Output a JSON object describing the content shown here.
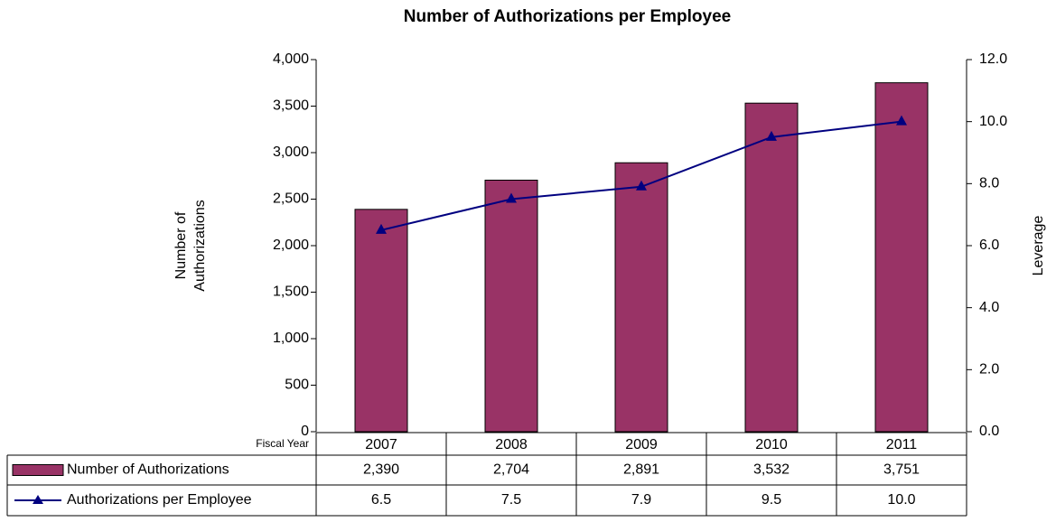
{
  "chart_data": {
    "type": "bar_line_table",
    "title": "Number of Authorizations per Employee",
    "ylabel": [
      "Number of",
      "Authorizations"
    ],
    "y2label": "Leverage",
    "xlabel": "Fiscal Year",
    "categories": [
      "2007",
      "2008",
      "2009",
      "2010",
      "2011"
    ],
    "series": [
      {
        "name": "Number of Authorizations",
        "type": "bar",
        "color": "#993366",
        "values": [
          2390,
          2704,
          2891,
          3532,
          3751
        ],
        "value_labels": [
          "2,390",
          "2,704",
          "2,891",
          "3,532",
          "3,751"
        ]
      },
      {
        "name": "Authorizations per Employee",
        "type": "line",
        "color": "#000080",
        "axis": "y2",
        "values": [
          6.5,
          7.5,
          7.9,
          9.5,
          10.0
        ],
        "value_labels": [
          "6.5",
          "7.5",
          "7.9",
          "9.5",
          "10.0"
        ]
      }
    ],
    "ylim": [
      0,
      4000
    ],
    "yticks": [
      0,
      500,
      {
        "value": 1000,
        "label": "1,000"
      },
      {
        "value": 1500,
        "label": "1,500"
      },
      {
        "value": 2000,
        "label": "2,000"
      },
      {
        "value": 2500,
        "label": "2,500"
      },
      {
        "value": 3000,
        "label": "3,000"
      },
      {
        "value": 3500,
        "label": "3,500"
      },
      {
        "value": 4000,
        "label": "4,000"
      }
    ],
    "y2lim": [
      0,
      12
    ],
    "y2ticks": [
      {
        "value": 0,
        "label": "0.0"
      },
      {
        "value": 2,
        "label": "2.0"
      },
      {
        "value": 4,
        "label": "4.0"
      },
      {
        "value": 6,
        "label": "6.0"
      },
      {
        "value": 8,
        "label": "8.0"
      },
      {
        "value": 10,
        "label": "10.0"
      },
      {
        "value": 12,
        "label": "12.0"
      }
    ],
    "grid": false
  }
}
